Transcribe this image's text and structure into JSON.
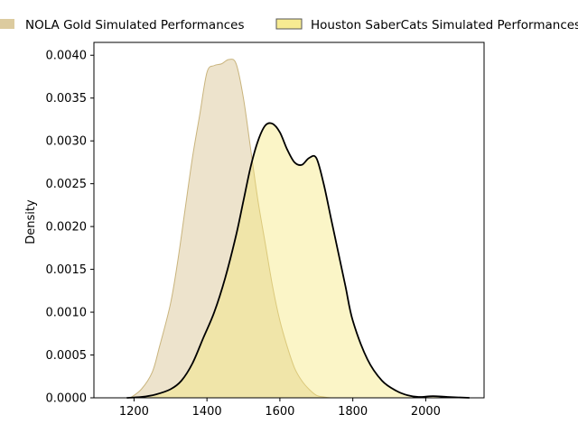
{
  "chart_data": {
    "type": "area",
    "xlabel": "",
    "ylabel": "Density",
    "xlim": [
      1090,
      2160
    ],
    "ylim": [
      0,
      0.00415
    ],
    "xticks": [
      1200,
      1400,
      1600,
      1800,
      2000
    ],
    "yticks": [
      0.0,
      0.0005,
      0.001,
      0.0015,
      0.002,
      0.0025,
      0.003,
      0.0035,
      0.004
    ],
    "ytick_labels": [
      "0.0000",
      "0.0005",
      "0.0010",
      "0.0015",
      "0.0020",
      "0.0025",
      "0.0030",
      "0.0035",
      "0.0040"
    ],
    "grid": false,
    "legend_position": "top",
    "series": [
      {
        "name": "NOLA Gold Simulated Performances",
        "fill_color": "#d6c28e",
        "fill_opacity": 0.45,
        "line_color": "#c9b47d",
        "x": [
          1190,
          1220,
          1250,
          1270,
          1300,
          1320,
          1340,
          1360,
          1380,
          1400,
          1420,
          1440,
          1460,
          1480,
          1500,
          1520,
          1540,
          1560,
          1580,
          1600,
          1620,
          1640,
          1660,
          1680,
          1700,
          1720,
          1740,
          1760,
          1790
        ],
        "y": [
          0.0,
          0.0001,
          0.0003,
          0.0006,
          0.0011,
          0.0016,
          0.0022,
          0.0028,
          0.0033,
          0.0038,
          0.00388,
          0.0039,
          0.00395,
          0.0039,
          0.0035,
          0.0029,
          0.0023,
          0.0018,
          0.0013,
          0.0009,
          0.0006,
          0.00035,
          0.0002,
          0.0001,
          3e-05,
          1e-05,
          0.0,
          0.0,
          0.0
        ]
      },
      {
        "name": "Houston SaberCats Simulated Performances",
        "fill_color": "#f5e77a",
        "fill_opacity": 0.42,
        "line_color": "#000000",
        "x": [
          1180,
          1220,
          1260,
          1300,
          1330,
          1360,
          1390,
          1420,
          1450,
          1480,
          1500,
          1520,
          1540,
          1560,
          1580,
          1600,
          1620,
          1640,
          1660,
          1680,
          1700,
          1720,
          1740,
          1760,
          1780,
          1800,
          1840,
          1880,
          1920,
          1950,
          1980,
          2020,
          2060,
          2120
        ],
        "y": [
          0.0,
          1e-05,
          4e-05,
          0.0001,
          0.0002,
          0.0004,
          0.0007,
          0.001,
          0.0014,
          0.0019,
          0.0023,
          0.0027,
          0.003,
          0.00318,
          0.0032,
          0.0031,
          0.0029,
          0.00275,
          0.00272,
          0.0028,
          0.0028,
          0.0025,
          0.0021,
          0.0017,
          0.0013,
          0.0009,
          0.00045,
          0.0002,
          8e-05,
          3e-05,
          1e-05,
          2e-05,
          1e-05,
          0.0
        ]
      }
    ]
  }
}
